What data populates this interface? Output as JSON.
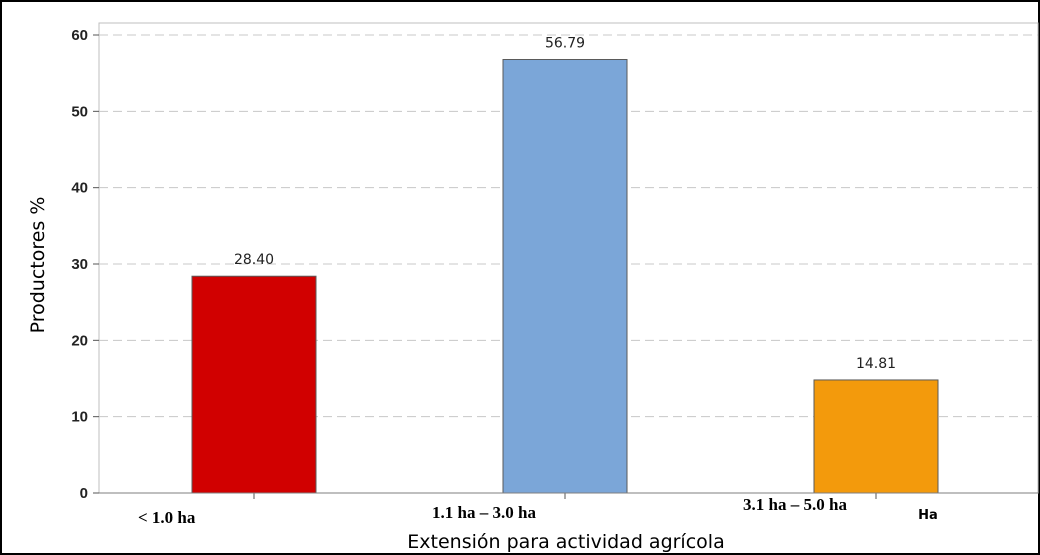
{
  "chart_data": {
    "type": "bar",
    "categories": [
      "< 1.0 ha",
      "1.1 ha – 3.0 ha",
      "3.1 ha – 5.0 ha"
    ],
    "values": [
      28.4,
      56.79,
      14.81
    ],
    "data_labels": [
      "28.40",
      "56.79",
      "14.81"
    ],
    "colors": [
      "#d10000",
      "#7ba6d8",
      "#f39a0c"
    ],
    "extra_x_label": "Ha",
    "title": "",
    "xlabel": "Extensión para actividad agrícola",
    "ylabel": "Productores %",
    "ylim": [
      0,
      60
    ],
    "yticks": [
      0,
      10,
      20,
      30,
      40,
      50,
      60
    ],
    "grid": true,
    "grid_style": "dashed"
  }
}
